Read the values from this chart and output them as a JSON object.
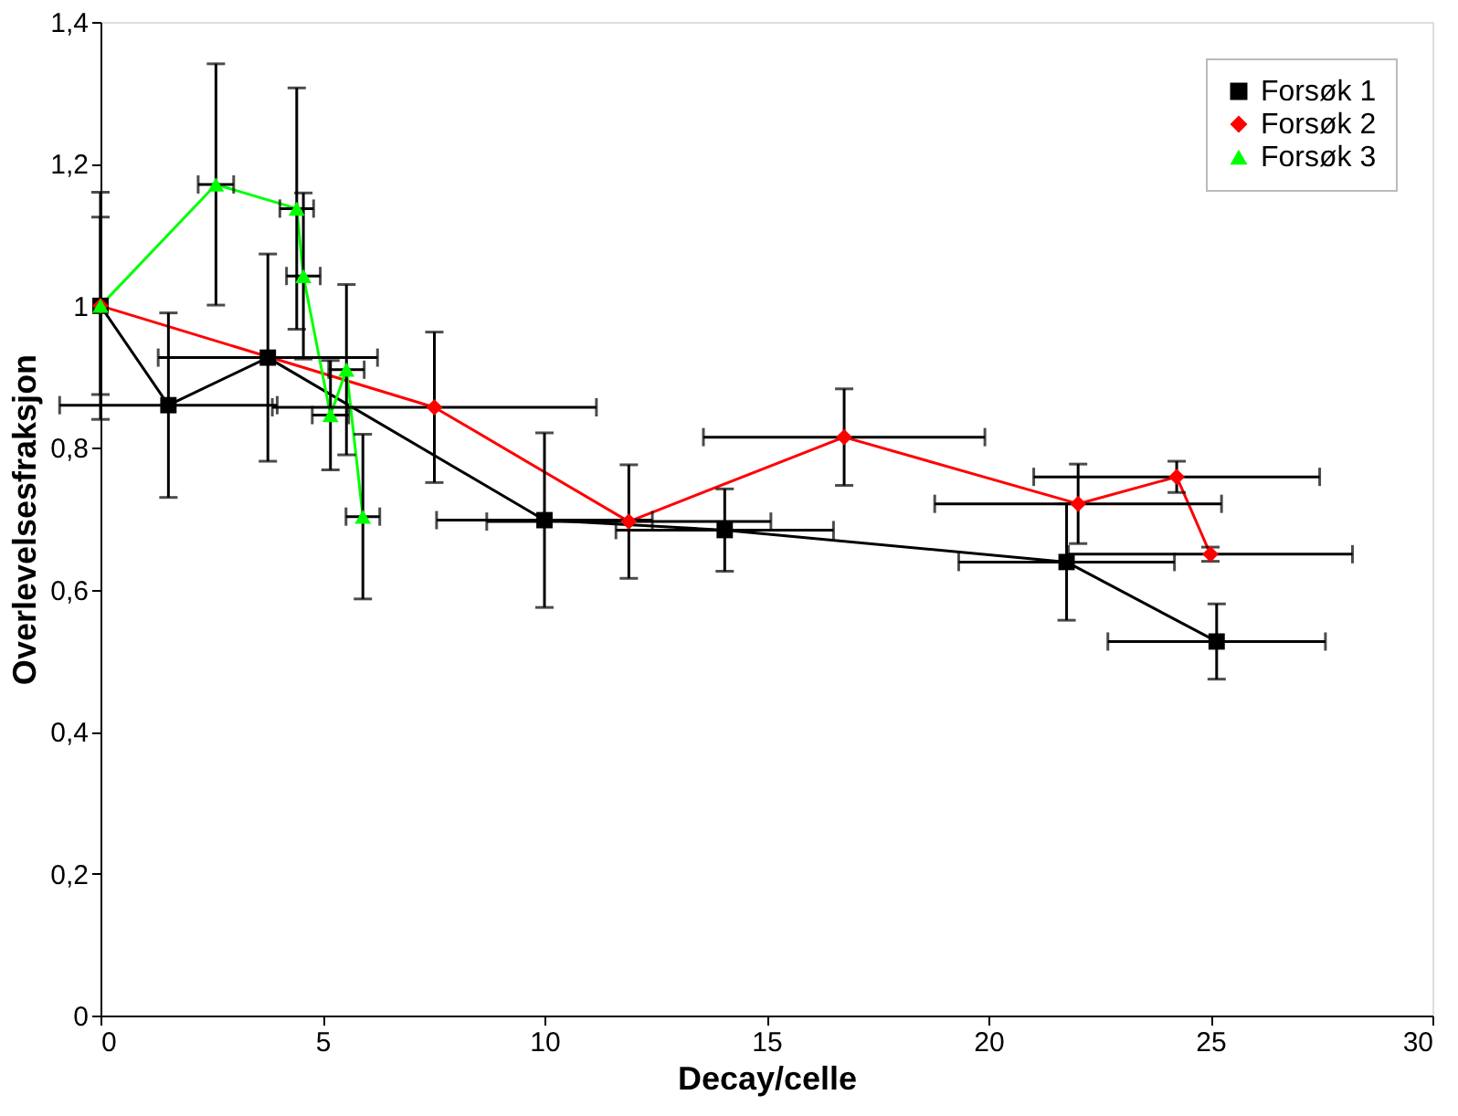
{
  "chart_data": {
    "type": "line",
    "xlabel": "Decay/celle",
    "ylabel": "Overlevelsesfraksjon",
    "xlim": [
      0,
      30
    ],
    "xticks": [
      0,
      5,
      10,
      15,
      20,
      25,
      30
    ],
    "ylim": [
      0,
      1.4
    ],
    "yticks": [
      0,
      {
        "value": 0.2,
        "label": "0,2"
      },
      {
        "value": 0.4,
        "label": "0,4"
      },
      {
        "value": 0.6,
        "label": "0,6"
      },
      {
        "value": 0.8,
        "label": "0,8"
      },
      1,
      {
        "value": 1.2,
        "label": "1,2"
      },
      {
        "value": 1.4,
        "label": "1,4"
      }
    ],
    "grid": false,
    "legend": "top right",
    "line_style": "solid",
    "series": [
      {
        "name": "Forsøk 1",
        "color": "#000000",
        "marker": "square",
        "x": [
          0,
          1.53,
          3.77,
          10.0,
          14.06,
          21.76,
          25.14
        ],
        "values": [
          1.0,
          0.86,
          0.927,
          0.698,
          0.684,
          0.639,
          0.527
        ],
        "errors": [
          0.16,
          0.13,
          0.146,
          0.123,
          0.058,
          0.082,
          0.053
        ],
        "xerrors": [
          null,
          2.45,
          2.47,
          2.43,
          2.45,
          2.43,
          2.45
        ]
      },
      {
        "name": "Forsøk 2",
        "color": "#ff0000",
        "marker": "diamond",
        "x": [
          0,
          7.52,
          11.9,
          16.75,
          22.02,
          24.24,
          25.0
        ],
        "values": [
          1.0,
          0.857,
          0.696,
          0.815,
          0.721,
          0.759,
          0.65
        ],
        "errors": [
          null,
          0.106,
          0.08,
          0.068,
          0.056,
          0.022,
          0.01
        ],
        "xerrors": [
          null,
          3.65,
          3.2,
          3.17,
          3.23,
          3.22,
          3.2
        ]
      },
      {
        "name": "Forsøk 3",
        "color": "#00ff00",
        "marker": "triangle",
        "x": [
          0,
          2.6,
          4.42,
          4.57,
          5.18,
          5.54,
          5.91
        ],
        "values": [
          1.0,
          1.171,
          1.137,
          1.042,
          0.846,
          0.91,
          0.703
        ],
        "errors": [
          0.125,
          0.17,
          0.17,
          0.117,
          0.077,
          0.12,
          0.116
        ],
        "xerrors": [
          null,
          0.4,
          0.38,
          0.38,
          0.41,
          0.4,
          0.38
        ]
      }
    ]
  }
}
